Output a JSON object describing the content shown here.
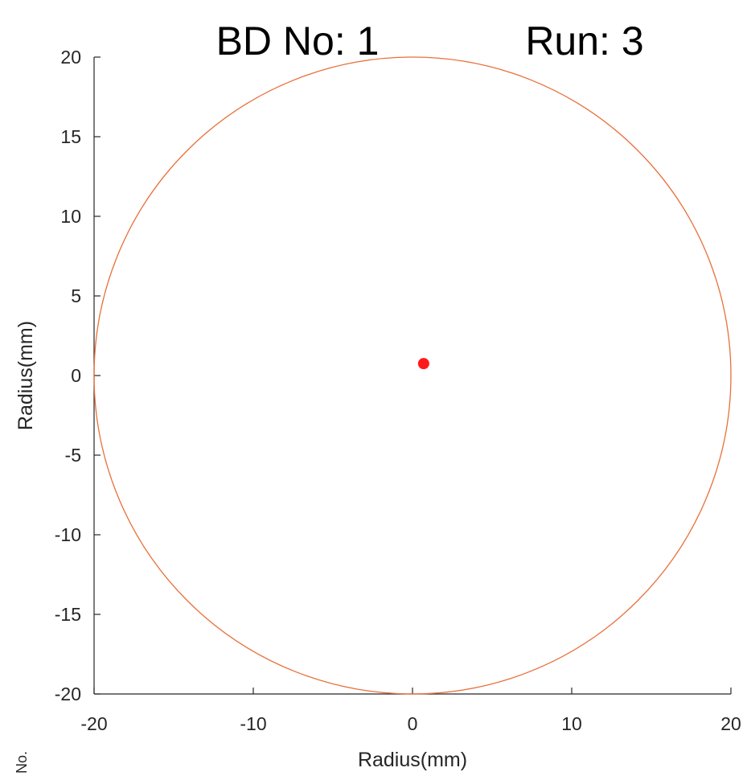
{
  "chart_data": {
    "type": "scatter",
    "title_left": "BD No: 1",
    "title_right": "Run: 3",
    "xlabel": "Radius(mm)",
    "ylabel": "Radius(mm)",
    "xlim": [
      -20,
      20
    ],
    "ylim": [
      -20,
      20
    ],
    "xticks": [
      -20,
      -10,
      0,
      10,
      20
    ],
    "yticks": [
      -20,
      -15,
      -10,
      -5,
      0,
      5,
      10,
      15,
      20
    ],
    "xtick_labels": [
      "-20",
      "-10",
      "0",
      "10",
      "20"
    ],
    "ytick_labels": [
      "-20",
      "-15",
      "-10",
      "-5",
      "0",
      "5",
      "10",
      "15",
      "20"
    ],
    "grid": false,
    "boundary_circle": {
      "center": [
        0,
        0
      ],
      "radius": 20,
      "color": "#e8703a"
    },
    "points": [
      {
        "x": 0.7,
        "y": 0.75,
        "color": "#ff1a1a"
      }
    ],
    "edge_fragment": "No."
  }
}
